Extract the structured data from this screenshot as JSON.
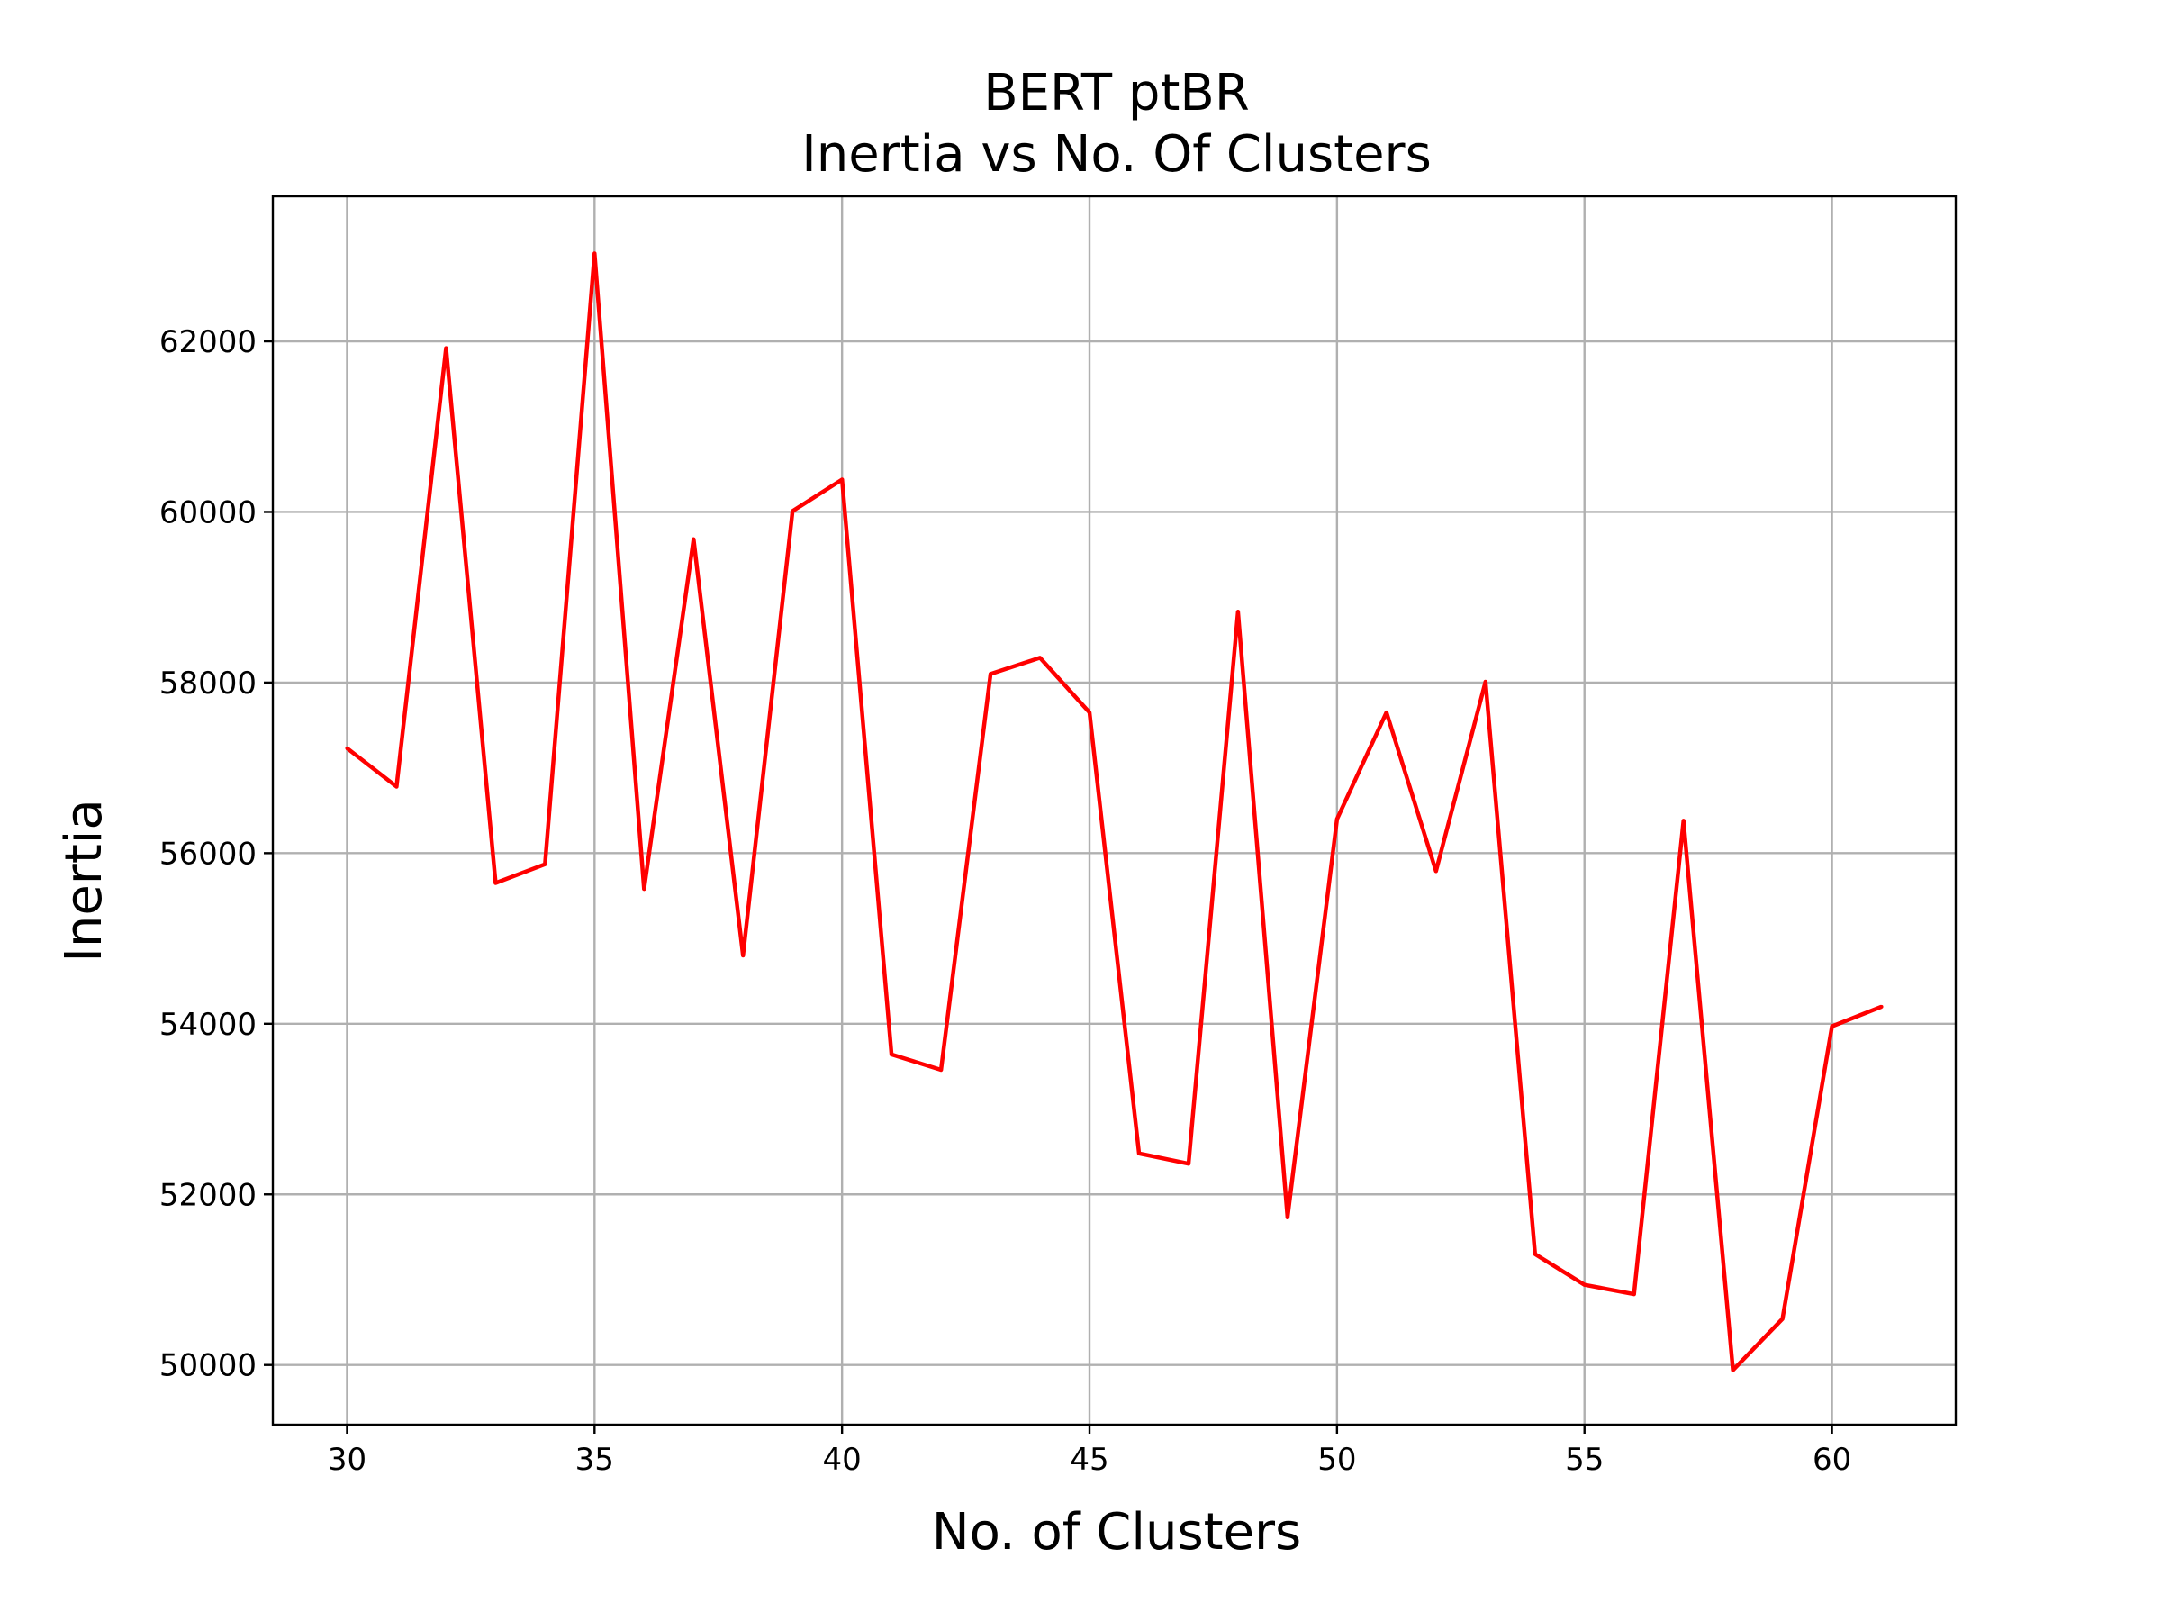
{
  "chart_data": {
    "type": "line",
    "title_line1": "BERT ptBR",
    "title_line2": "Inertia vs No. Of Clusters",
    "xlabel": "No. of Clusters",
    "ylabel": "Inertia",
    "xlim": [
      28.5,
      62.5
    ],
    "ylim": [
      49300,
      63700
    ],
    "xticks": [
      30,
      35,
      40,
      45,
      50,
      55,
      60
    ],
    "yticks": [
      50000,
      52000,
      54000,
      56000,
      58000,
      60000,
      62000
    ],
    "grid": true,
    "line_color": "#ff0000",
    "x": [
      30,
      31,
      32,
      33,
      34,
      35,
      36,
      37,
      38,
      39,
      40,
      41,
      42,
      43,
      44,
      45,
      46,
      47,
      48,
      49,
      50,
      51,
      52,
      53,
      54,
      55,
      56,
      57,
      58,
      59,
      60,
      61
    ],
    "y": [
      57230,
      56780,
      61920,
      55650,
      55870,
      63030,
      55580,
      59680,
      54800,
      60010,
      60380,
      53640,
      53460,
      58100,
      58290,
      57650,
      52480,
      52360,
      58830,
      51730,
      56400,
      57650,
      55790,
      58010,
      51300,
      50940,
      50830,
      56380,
      49940,
      50540,
      53970,
      54200
    ]
  }
}
